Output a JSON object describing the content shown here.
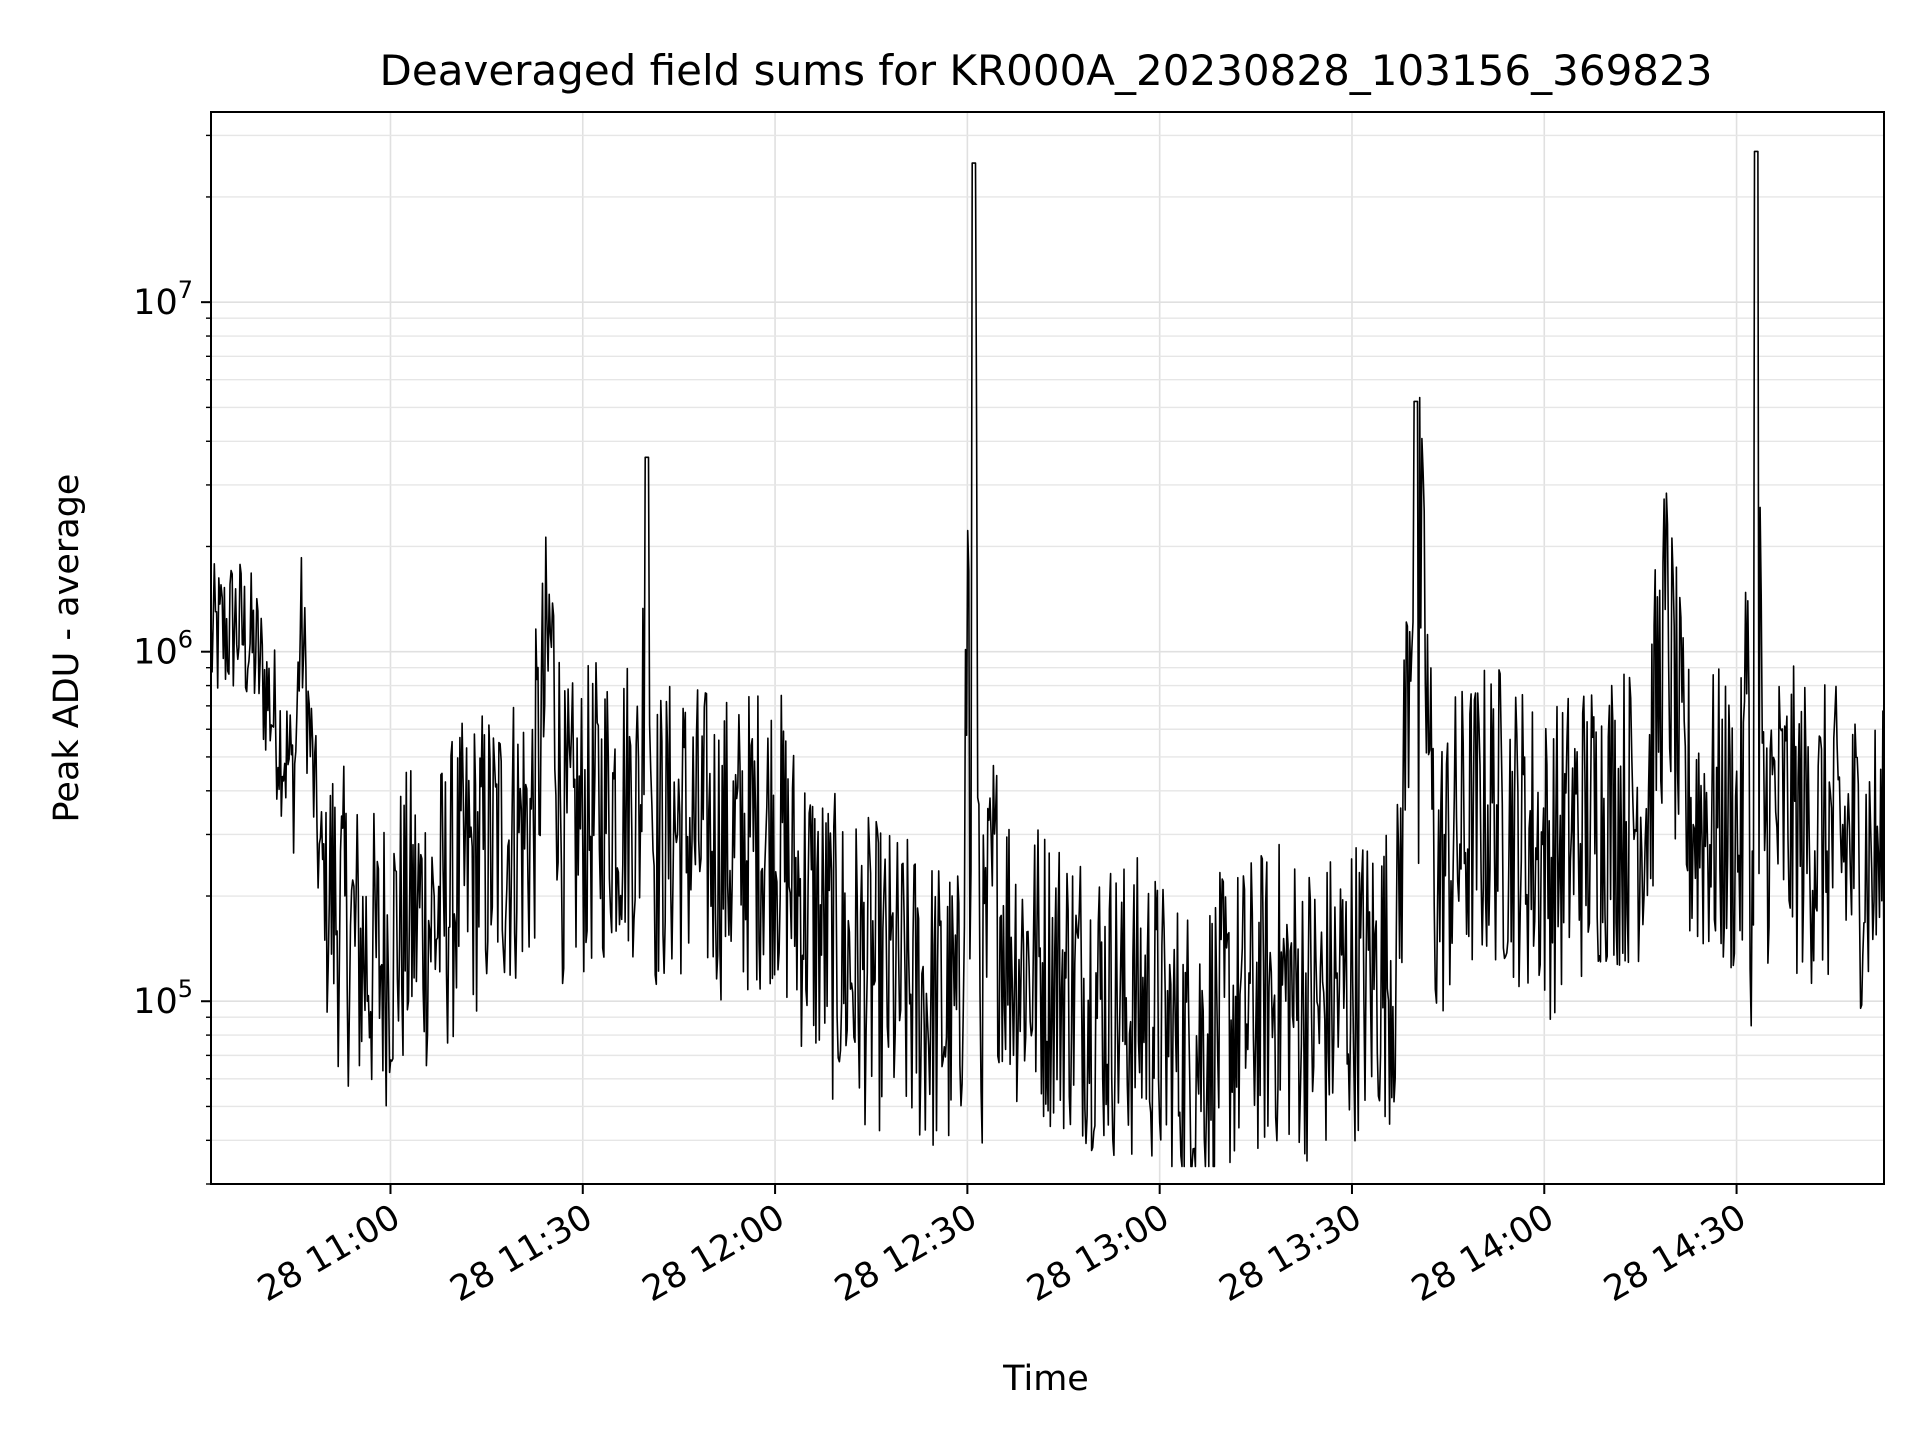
{
  "chart_data": {
    "type": "line",
    "title": "Deaveraged field sums for KR000A_20230828_103156_369823",
    "xlabel": "Time",
    "ylabel": "Peak ADU - average",
    "yscale": "log",
    "xlim": [
      "2023-08-28 10:32",
      "2023-08-28 14:53"
    ],
    "ylim": [
      30000,
      35000000
    ],
    "grid": true,
    "x_ticks": [
      "28 11:00",
      "28 11:30",
      "28 12:00",
      "28 12:30",
      "28 13:00",
      "28 13:30",
      "28 14:00",
      "28 14:30"
    ],
    "y_ticks": [
      {
        "base": "10",
        "exp": "5",
        "value": 100000
      },
      {
        "base": "10",
        "exp": "6",
        "value": 1000000
      },
      {
        "base": "10",
        "exp": "7",
        "value": 10000000
      }
    ],
    "line_color": "#000000",
    "series": [
      {
        "x": [
          "10:32",
          "10:36",
          "10:39",
          "10:42",
          "10:45",
          "10:46",
          "10:49",
          "10:52",
          "10:55",
          "10:58",
          "11:01",
          "11:04",
          "11:07",
          "11:10",
          "11:13",
          "11:16",
          "11:19",
          "11:22",
          "11:25",
          "11:27",
          "11:30",
          "11:33",
          "11:36",
          "11:39",
          "11:40",
          "11:41",
          "11:45",
          "11:48",
          "11:51",
          "11:54",
          "11:57",
          "12:00",
          "12:03",
          "12:06",
          "12:09",
          "12:12",
          "12:15",
          "12:18",
          "12:21",
          "12:24",
          "12:27",
          "12:29",
          "12:31",
          "12:32",
          "12:34",
          "12:37",
          "12:40",
          "12:43",
          "12:46",
          "12:49",
          "12:52",
          "12:55",
          "12:58",
          "13:01",
          "13:04",
          "13:07",
          "13:10",
          "13:13",
          "13:16",
          "13:19",
          "13:22",
          "13:25",
          "13:28",
          "13:31",
          "13:34",
          "13:37",
          "13:40",
          "13:43",
          "13:46",
          "13:49",
          "13:52",
          "13:55",
          "13:58",
          "14:01",
          "14:04",
          "14:07",
          "14:10",
          "14:13",
          "14:16",
          "14:19",
          "14:22",
          "14:25",
          "14:28",
          "14:31",
          "14:33",
          "14:34",
          "14:37",
          "14:40",
          "14:43",
          "14:46",
          "14:49",
          "14:52"
        ],
        "y": [
          1500000,
          1700000,
          1400000,
          900000,
          600000,
          1750000,
          350000,
          250000,
          200000,
          180000,
          220000,
          250000,
          240000,
          300000,
          350000,
          380000,
          420000,
          450000,
          1550000,
          400000,
          450000,
          500000,
          550000,
          500000,
          3600000,
          400000,
          450000,
          420000,
          400000,
          380000,
          420000,
          450000,
          300000,
          250000,
          200000,
          180000,
          170000,
          160000,
          150000,
          140000,
          130000,
          120000,
          25000000,
          130000,
          300000,
          200000,
          180000,
          170000,
          160000,
          150000,
          140000,
          130000,
          140000,
          110000,
          100000,
          110000,
          120000,
          130000,
          140000,
          150000,
          140000,
          130000,
          150000,
          160000,
          170000,
          180000,
          5200000,
          300000,
          400000,
          450000,
          500000,
          450000,
          400000,
          350000,
          420000,
          450000,
          500000,
          480000,
          520000,
          1800000,
          500000,
          480000,
          450000,
          420000,
          27000000,
          500000,
          480000,
          450000,
          420000,
          400000,
          380000,
          350000
        ]
      }
    ]
  }
}
